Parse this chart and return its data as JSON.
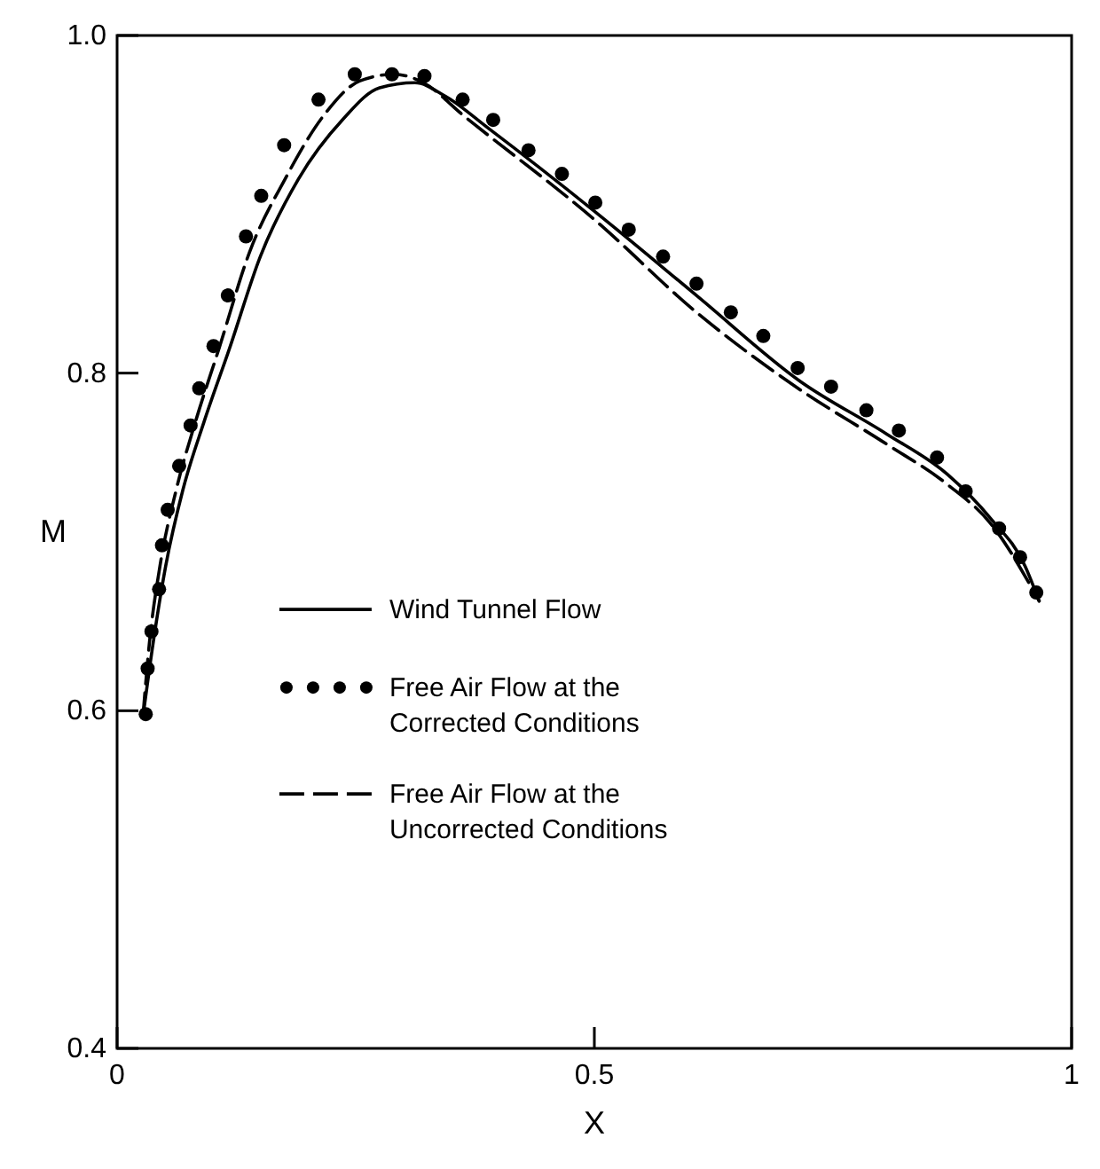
{
  "chart_data": {
    "type": "line",
    "xlabel": "X",
    "ylabel": "M",
    "xlim": [
      0,
      1
    ],
    "ylim": [
      0.4,
      1.0
    ],
    "xticks": [
      0,
      0.5,
      1
    ],
    "yticks": [
      0.4,
      0.6,
      0.8,
      {
        "value": 1,
        "label": "1.0"
      }
    ],
    "grid": false,
    "legend": "center left",
    "series": [
      {
        "name": "Wind Tunnel Flow",
        "color": "#000000",
        "line_style": "solid",
        "marker": "none",
        "x": [
          0.027,
          0.038,
          0.051,
          0.069,
          0.091,
          0.118,
          0.15,
          0.19,
          0.236,
          0.275,
          0.312,
          0.344,
          0.389,
          0.502,
          0.607,
          0.716,
          0.806,
          0.87,
          0.915,
          0.951,
          0.966
        ],
        "values": [
          0.596,
          0.641,
          0.686,
          0.731,
          0.771,
          0.815,
          0.869,
          0.915,
          0.95,
          0.969,
          0.972,
          0.964,
          0.945,
          0.895,
          0.846,
          0.795,
          0.764,
          0.74,
          0.714,
          0.686,
          0.665
        ]
      },
      {
        "name": "Free Air Flow at the Corrected Conditions",
        "type": "scatter",
        "color": "#000000",
        "marker": "circle",
        "x": [
          0.03,
          0.032,
          0.036,
          0.044,
          0.047,
          0.053,
          0.065,
          0.077,
          0.086,
          0.101,
          0.116,
          0.135,
          0.151,
          0.175,
          0.211,
          0.249,
          0.288,
          0.322,
          0.362,
          0.394,
          0.431,
          0.466,
          0.501,
          0.536,
          0.572,
          0.607,
          0.643,
          0.677,
          0.713,
          0.748,
          0.785,
          0.819,
          0.859,
          0.889,
          0.924,
          0.946,
          0.963
        ],
        "values": [
          0.598,
          0.625,
          0.647,
          0.672,
          0.698,
          0.719,
          0.745,
          0.769,
          0.791,
          0.816,
          0.846,
          0.881,
          0.905,
          0.935,
          0.962,
          0.977,
          0.977,
          0.976,
          0.962,
          0.95,
          0.932,
          0.918,
          0.901,
          0.885,
          0.869,
          0.853,
          0.836,
          0.822,
          0.803,
          0.792,
          0.778,
          0.766,
          0.75,
          0.73,
          0.708,
          0.691,
          0.67
        ]
      },
      {
        "name": "Free Air Flow at the Uncorrected Conditions",
        "color": "#000000",
        "line_style": "dashed",
        "marker": "none",
        "x": [
          0.027,
          0.034,
          0.045,
          0.062,
          0.082,
          0.107,
          0.139,
          0.176,
          0.217,
          0.254,
          0.29,
          0.321,
          0.362,
          0.502,
          0.607,
          0.716,
          0.806,
          0.87,
          0.915,
          0.966
        ],
        "values": [
          0.596,
          0.641,
          0.686,
          0.731,
          0.771,
          0.815,
          0.872,
          0.915,
          0.953,
          0.973,
          0.977,
          0.972,
          0.953,
          0.89,
          0.836,
          0.79,
          0.758,
          0.734,
          0.711,
          0.665
        ]
      }
    ]
  }
}
